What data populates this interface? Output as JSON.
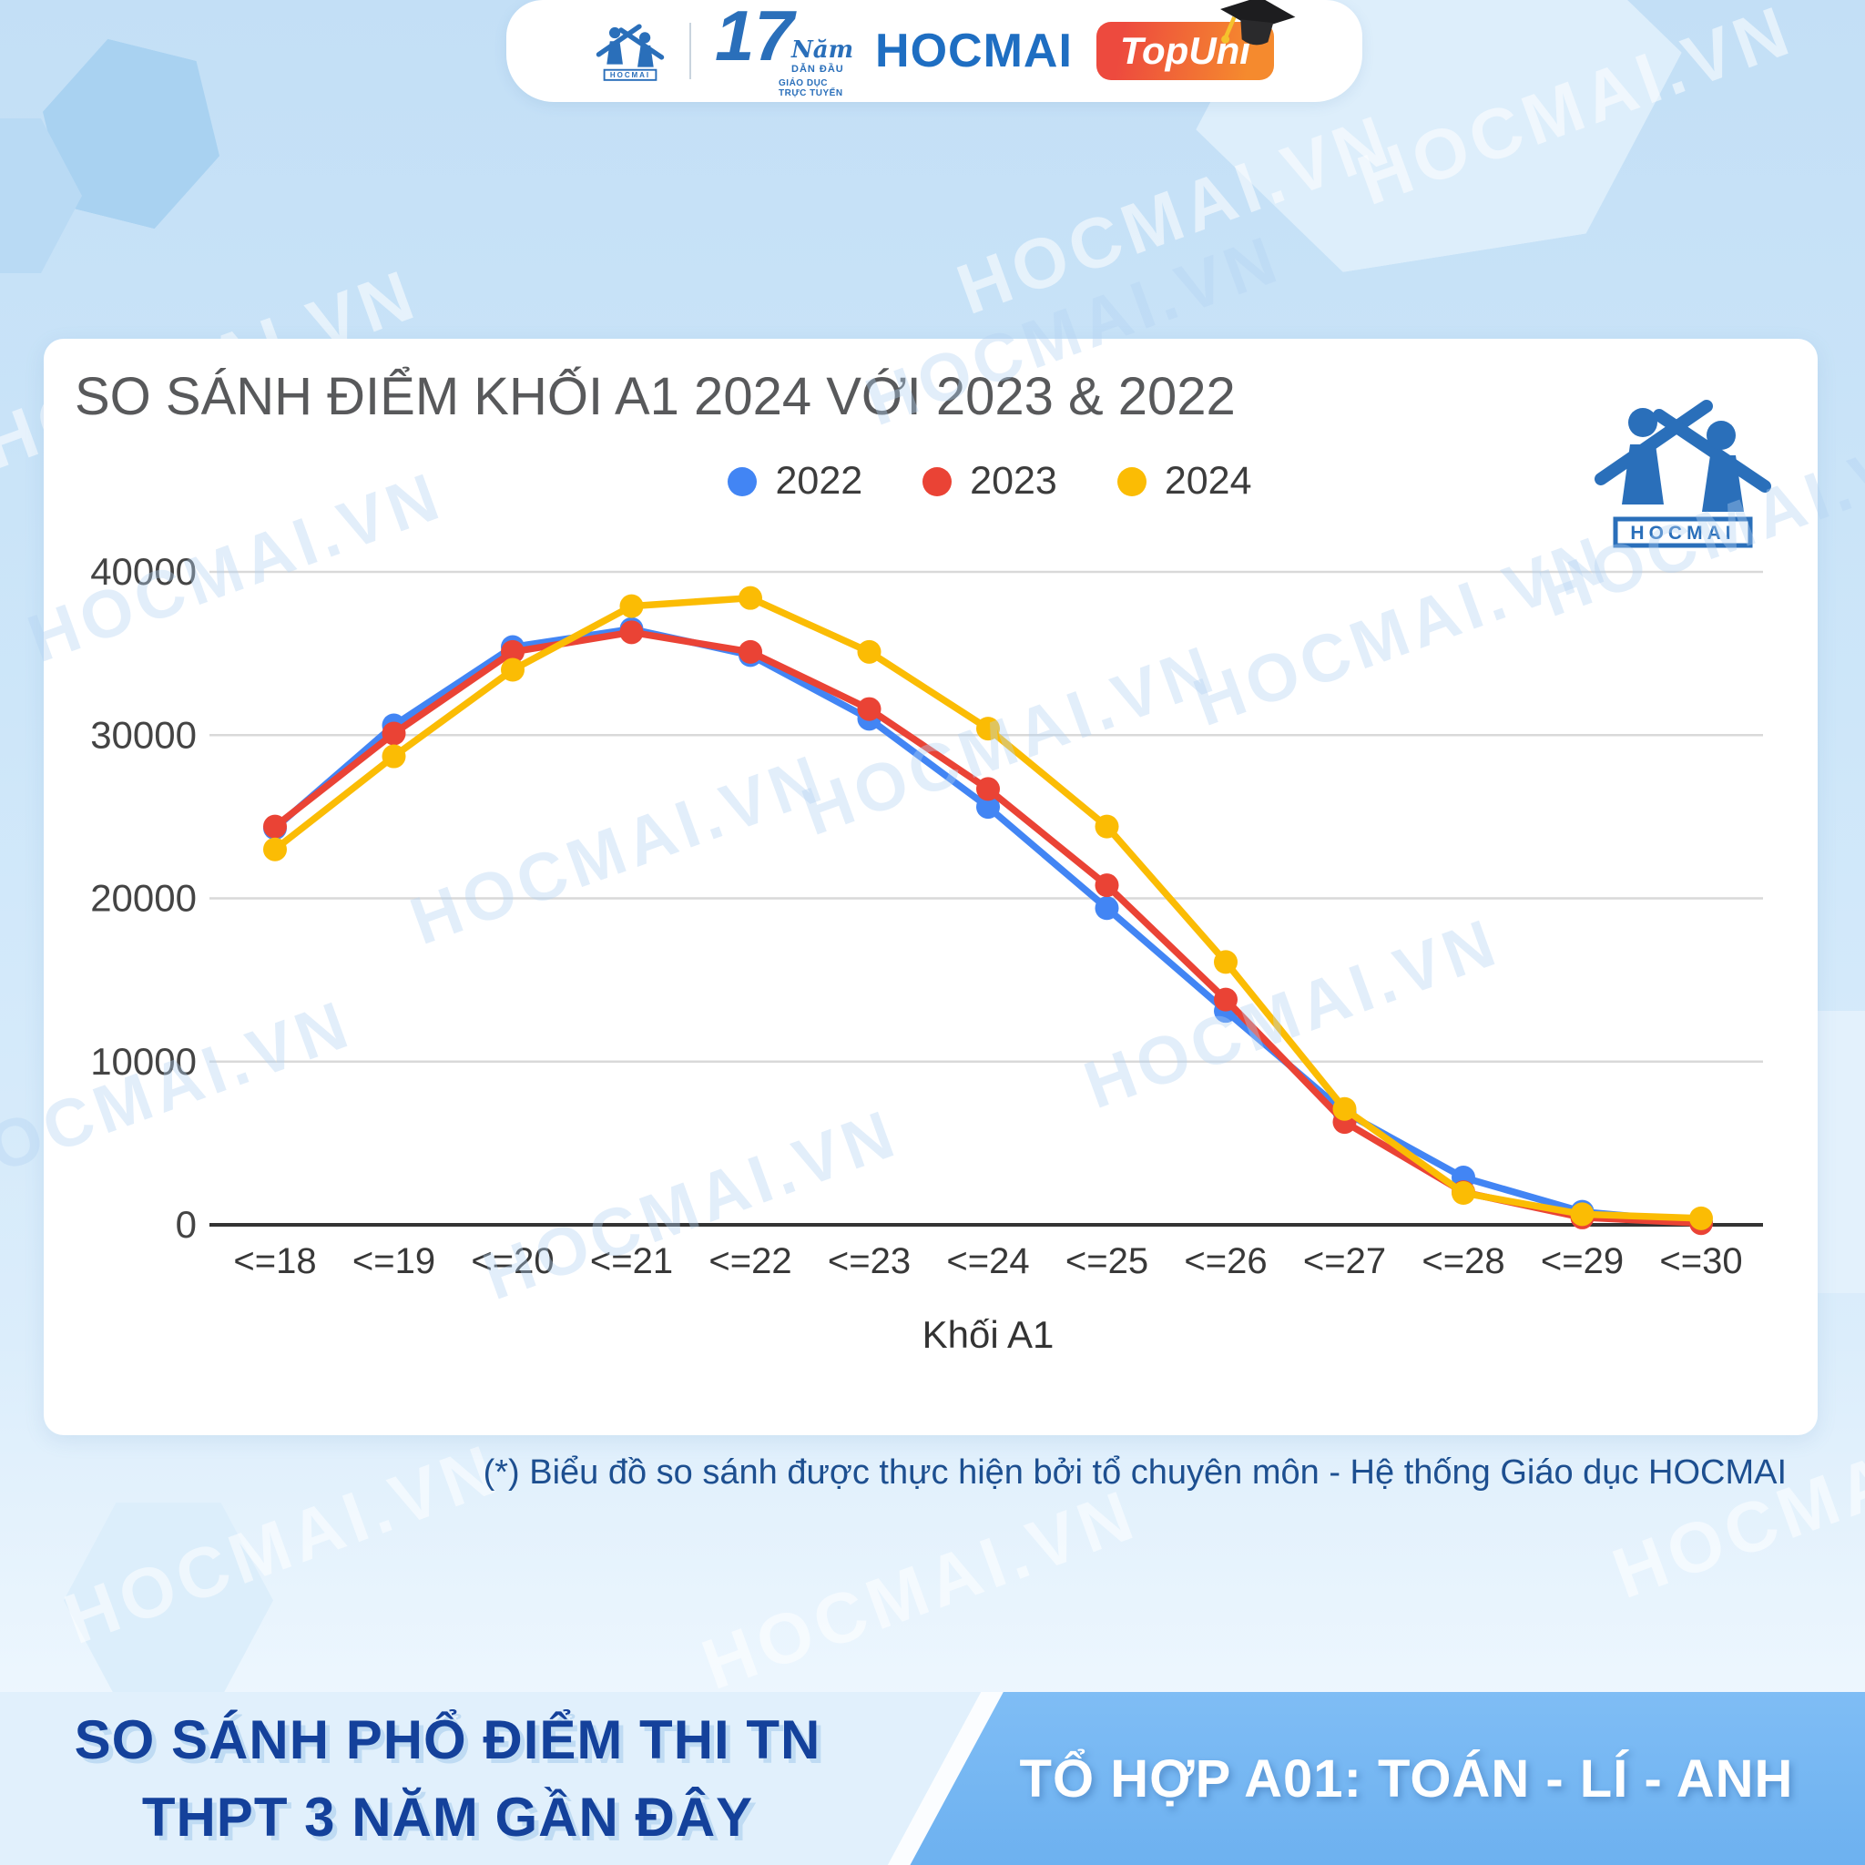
{
  "branding": {
    "watermark": "HOCMAI.VN",
    "logo_label": "HOCMAI"
  },
  "header": {
    "anniversary_number": "17",
    "anniversary_script": "Năm",
    "anniversary_line1": "DẪN ĐẦU",
    "anniversary_line2": "GIÁO DỤC TRỰC TUYẾN",
    "brand_name": "HOCMAI",
    "badge_label": "TopUni"
  },
  "chart_data": {
    "type": "line",
    "title": "SO SÁNH ĐIỂM KHỐI A1 2024 VỚI 2023 & 2022",
    "xlabel": "Khối A1",
    "ylabel": "",
    "ylim": [
      0,
      40000
    ],
    "yticks": [
      0,
      10000,
      20000,
      30000,
      40000
    ],
    "grid": true,
    "legend_position": "top",
    "categories": [
      "<=18",
      "<=19",
      "<=20",
      "<=21",
      "<=22",
      "<=23",
      "<=24",
      "<=25",
      "<=26",
      "<=27",
      "<=28",
      "<=29",
      "<=30"
    ],
    "series": [
      {
        "name": "2022",
        "color": "#4285F4",
        "values": [
          24300,
          30600,
          35400,
          36500,
          34900,
          31000,
          25600,
          19400,
          13100,
          6900,
          2900,
          800,
          150
        ]
      },
      {
        "name": "2023",
        "color": "#EA4335",
        "values": [
          24400,
          30100,
          35100,
          36300,
          35100,
          31600,
          26700,
          20800,
          13800,
          6300,
          2000,
          450,
          100
        ]
      },
      {
        "name": "2024",
        "color": "#FBBC04",
        "values": [
          23000,
          28700,
          34000,
          37900,
          38400,
          35100,
          30400,
          24400,
          16100,
          7100,
          1950,
          650,
          400
        ]
      }
    ]
  },
  "caption": "(*) Biểu đồ so sánh được thực hiện bởi tổ chuyên môn - Hệ thống Giáo dục HOCMAI",
  "footer": {
    "left_line1": "SO SÁNH PHỔ ĐIỂM THI TN",
    "left_line2": "THPT 3 NĂM GẦN ĐÂY",
    "right": "TỔ HỢP A01: TOÁN - LÍ - ANH"
  },
  "colors": {
    "series_2022": "#4285F4",
    "series_2023": "#EA4335",
    "series_2024": "#FBBC04",
    "brand_blue": "#2a6fba",
    "caption_navy": "#1d4f90",
    "footer_navy": "#14419b",
    "footer_panel_light": "#e1f0fc",
    "footer_panel_blue": "#6db1f0"
  }
}
